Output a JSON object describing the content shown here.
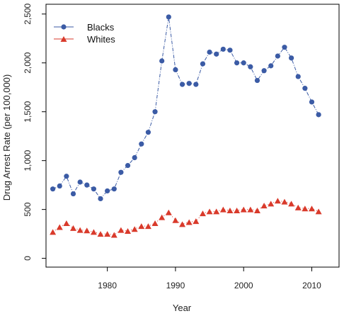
{
  "colors": {
    "blacks": "#3b5ba5",
    "whites": "#d93a2b",
    "axis": "#000000"
  },
  "chart_data": {
    "type": "line",
    "xlabel": "Year",
    "ylabel": "Drug Arrest Rate (per 100,000)",
    "xlim": [
      1971,
      2014
    ],
    "ylim": [
      -90,
      2600
    ],
    "xticks": [
      1980,
      1990,
      2000,
      2010
    ],
    "xtick_labels": [
      "1980",
      "1990",
      "2000",
      "2010"
    ],
    "yticks": [
      0,
      500,
      1000,
      1500,
      2000,
      2500
    ],
    "ytick_labels": [
      "0",
      "500",
      "1,000",
      "1,500",
      "2,000",
      "2,500"
    ],
    "legend_position": "top-left",
    "grid": false,
    "x": [
      1972,
      1973,
      1974,
      1975,
      1976,
      1977,
      1978,
      1979,
      1980,
      1981,
      1982,
      1983,
      1984,
      1985,
      1986,
      1987,
      1988,
      1989,
      1990,
      1991,
      1992,
      1993,
      1994,
      1995,
      1996,
      1997,
      1998,
      1999,
      2000,
      2001,
      2002,
      2003,
      2004,
      2005,
      2006,
      2007,
      2008,
      2009,
      2010,
      2011
    ],
    "series": [
      {
        "name": "Blacks",
        "marker": "circle",
        "values": [
          710,
          740,
          840,
          660,
          780,
          750,
          710,
          610,
          690,
          710,
          880,
          950,
          1030,
          1170,
          1290,
          1500,
          2020,
          2470,
          1930,
          1780,
          1790,
          1780,
          1990,
          2110,
          2090,
          2140,
          2130,
          2000,
          2000,
          1960,
          1820,
          1920,
          1970,
          2070,
          2160,
          2050,
          1860,
          1740,
          1600,
          1470
        ]
      },
      {
        "name": "Whites",
        "marker": "triangle",
        "values": [
          270,
          320,
          360,
          310,
          290,
          285,
          270,
          250,
          250,
          240,
          290,
          280,
          300,
          330,
          330,
          360,
          420,
          470,
          390,
          350,
          370,
          380,
          460,
          480,
          480,
          500,
          490,
          490,
          500,
          500,
          490,
          540,
          560,
          590,
          580,
          560,
          520,
          510,
          510,
          480
        ]
      }
    ]
  }
}
